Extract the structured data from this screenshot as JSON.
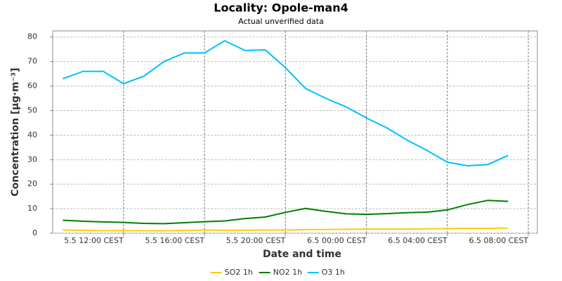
{
  "chart_data": {
    "type": "line",
    "title": "Locality: Opole-man4",
    "subtitle": "Actual unverified data",
    "x_label": "Date and time",
    "y_label": "Concentration [µg·m⁻³]",
    "x": [
      9,
      10,
      11,
      12,
      13,
      14,
      15,
      16,
      17,
      18,
      19,
      20,
      21,
      22,
      23,
      24,
      25,
      26,
      27,
      28,
      29,
      30,
      31
    ],
    "xlim": [
      8.5,
      32.45
    ],
    "xticks": [
      {
        "value": 12,
        "label": "5.5 12:00 CEST"
      },
      {
        "value": 16,
        "label": "5.5 16:00 CEST"
      },
      {
        "value": 20,
        "label": "5.5 20:00 CEST"
      },
      {
        "value": 24,
        "label": "6.5 00:00 CEST"
      },
      {
        "value": 28,
        "label": "6.5 04:00 CEST"
      },
      {
        "value": 32,
        "label": "6.5 08:00 CEST"
      }
    ],
    "ylim": [
      0,
      82.5
    ],
    "yticks": [
      0,
      10,
      20,
      30,
      40,
      50,
      60,
      70,
      80
    ],
    "grid": true,
    "legend": "bottom",
    "series": [
      {
        "name": "SO2 1h",
        "color": "#ffcc00",
        "values": [
          1.3,
          1.2,
          1.0,
          1.1,
          1.0,
          1.0,
          1.1,
          1.3,
          1.2,
          1.2,
          1.3,
          1.3,
          1.5,
          1.5,
          1.6,
          1.7,
          1.7,
          1.7,
          1.8,
          1.9,
          2.0,
          2.0,
          2.1
        ]
      },
      {
        "name": "NO2 1h",
        "color": "#008000",
        "values": [
          5.3,
          4.9,
          4.6,
          4.4,
          4.0,
          3.9,
          4.3,
          4.7,
          5.0,
          6.0,
          6.6,
          8.5,
          10.1,
          8.9,
          7.9,
          7.7,
          8.0,
          8.4,
          8.6,
          9.5,
          11.7,
          13.4,
          13.0
        ]
      },
      {
        "name": "O3 1h",
        "color": "#00bfff",
        "values": [
          63,
          66,
          66,
          61,
          64,
          70,
          73.5,
          73.5,
          78.5,
          74.5,
          74.8,
          67.5,
          59,
          55,
          51.5,
          47,
          43,
          38,
          33.7,
          29,
          27.5,
          28,
          31.7
        ]
      }
    ]
  }
}
